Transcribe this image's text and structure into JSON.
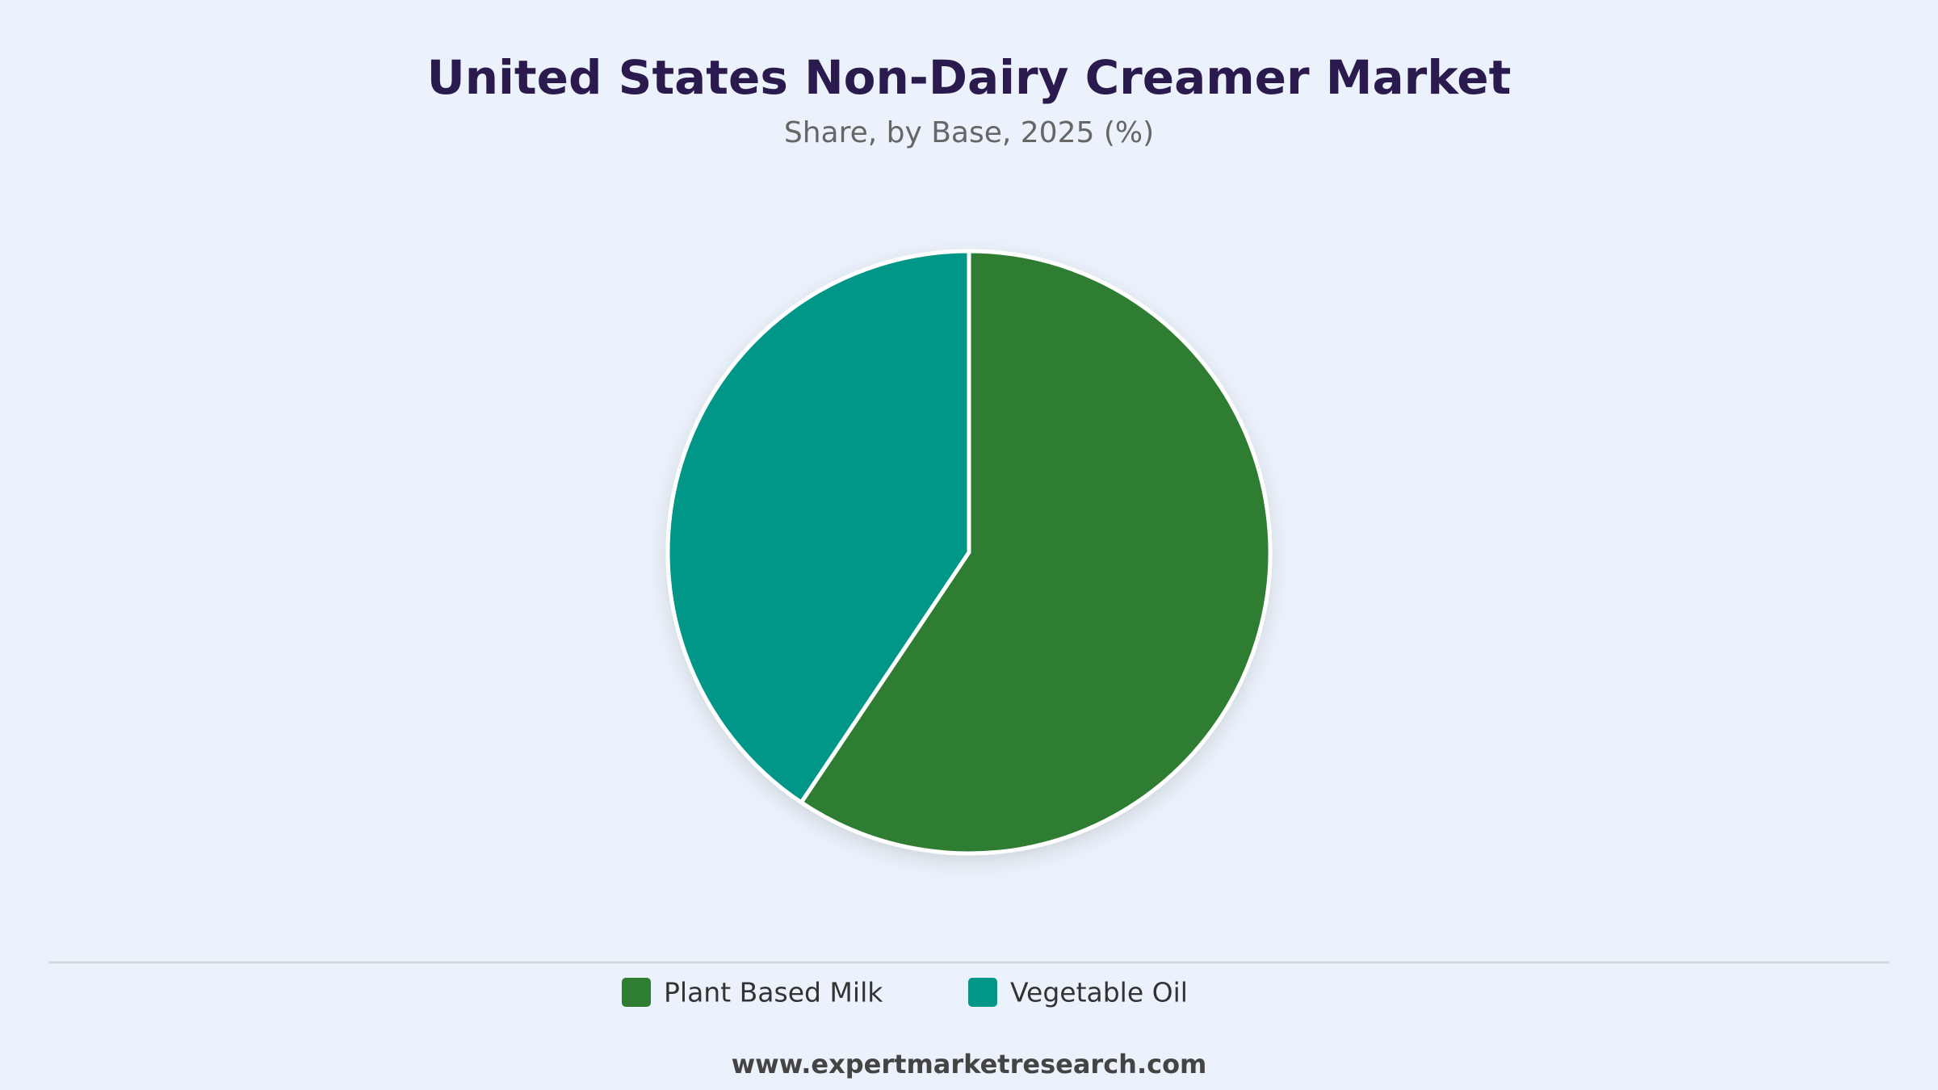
{
  "chart_data": {
    "type": "pie",
    "title": "United States Non-Dairy Creamer Market",
    "subtitle": "Share, by Base, 2025 (%)",
    "categories": [
      "Plant Based Milk",
      "Vegetable Oil"
    ],
    "values": [
      59.4,
      40.6
    ],
    "colors": [
      "#2e7d32",
      "#009688"
    ],
    "source": "www.expertmarketresearch.com"
  }
}
